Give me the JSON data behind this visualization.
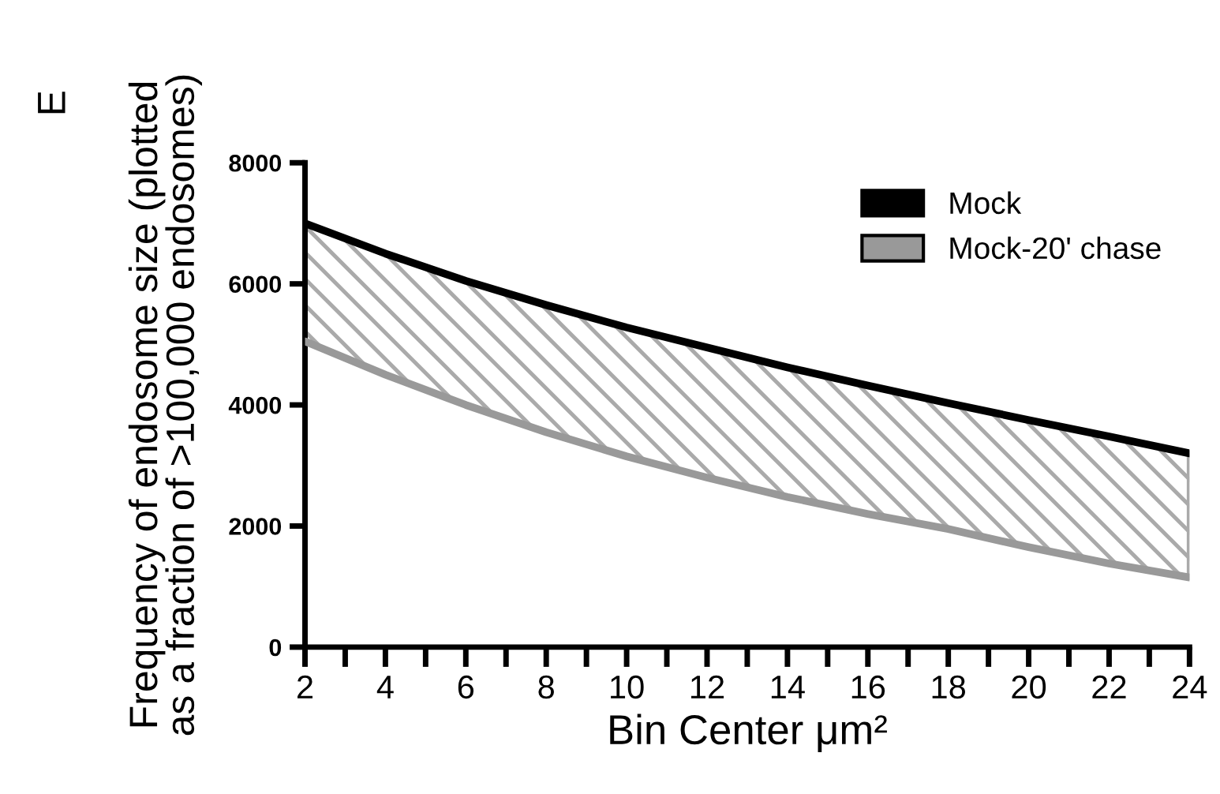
{
  "chart_data": {
    "type": "line",
    "xlabel": "Bin Center μm²",
    "ylabel": "Frequency of endosome size (plotted\nas a fraction of >100,000 endosomes)",
    "annotations": [
      "E"
    ],
    "x": [
      2,
      4,
      6,
      8,
      10,
      12,
      14,
      16,
      18,
      20,
      22,
      24
    ],
    "series": [
      {
        "name": "Mock",
        "color": "#000000",
        "values": [
          7000,
          6500,
          6050,
          5650,
          5280,
          4950,
          4620,
          4320,
          4030,
          3750,
          3480,
          3200
        ],
        "lower": [
          5050,
          4500,
          4000,
          3550,
          3150,
          2800,
          2480,
          2200,
          1950,
          1650,
          1380,
          1150
        ],
        "upper": [
          7000,
          6500,
          6050,
          5650,
          5280,
          4950,
          4620,
          4320,
          4030,
          3750,
          3480,
          3200
        ]
      },
      {
        "name": "Mock-20' chase",
        "color": "#999999",
        "values": [
          5050,
          4500,
          4000,
          3550,
          3150,
          2800,
          2480,
          2200,
          1950,
          1650,
          1380,
          1150
        ]
      }
    ],
    "xlim": [
      2,
      24
    ],
    "xticks": [
      2,
      4,
      6,
      8,
      10,
      12,
      14,
      16,
      18,
      20,
      22,
      24
    ],
    "ylim": [
      0,
      8000
    ],
    "yticks": [
      0,
      2000,
      4000,
      6000,
      8000
    ],
    "grid": false,
    "legend": "upper right",
    "marker": "none",
    "line_style": "solid"
  }
}
